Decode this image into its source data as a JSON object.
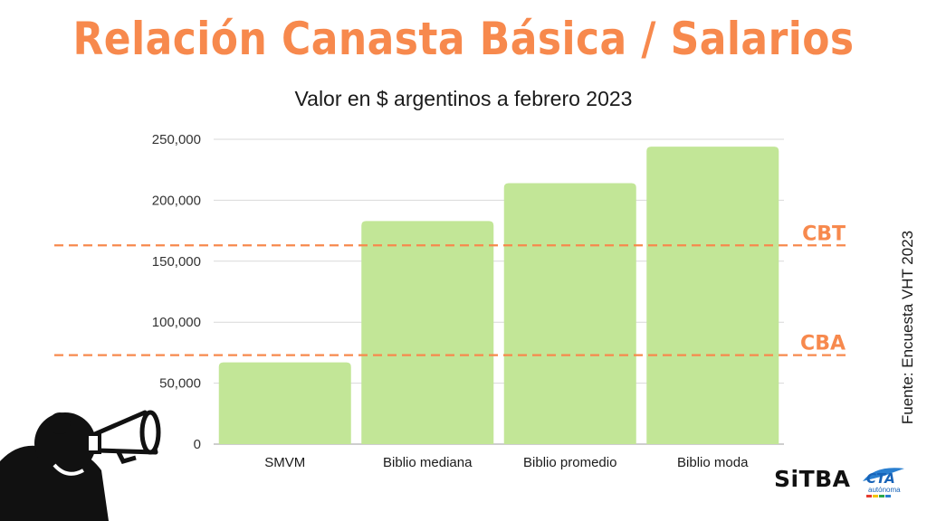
{
  "title": "Relación Canasta Básica / Salarios",
  "subtitle": "Valor en $ argentinos a febrero 2023",
  "source": "Fuente: Encuesta VHT 2023",
  "logos": {
    "sitba": "SiTBA",
    "cta_top": "CTA",
    "cta_bottom": "autónoma"
  },
  "colors": {
    "bar": "#c2e697",
    "reference_line": "#f7894d",
    "title": "#f7894d"
  },
  "icons": {
    "mascot": "megaphone-person-icon",
    "cta": "cta-logo-icon"
  },
  "chart_data": {
    "type": "bar",
    "categories": [
      "SMVM",
      "Biblio mediana",
      "Biblio promedio",
      "Biblio moda"
    ],
    "values": [
      67000,
      183000,
      214000,
      244000
    ],
    "ylim": [
      0,
      250000
    ],
    "yticks": [
      0,
      50000,
      100000,
      150000,
      200000,
      250000
    ],
    "ytick_labels": [
      "0",
      "50,000",
      "100,000",
      "150,000",
      "200,000",
      "250,000"
    ],
    "grid": true,
    "reference_lines": [
      {
        "label": "CBT",
        "value": 163000
      },
      {
        "label": "CBA",
        "value": 73000
      }
    ]
  }
}
